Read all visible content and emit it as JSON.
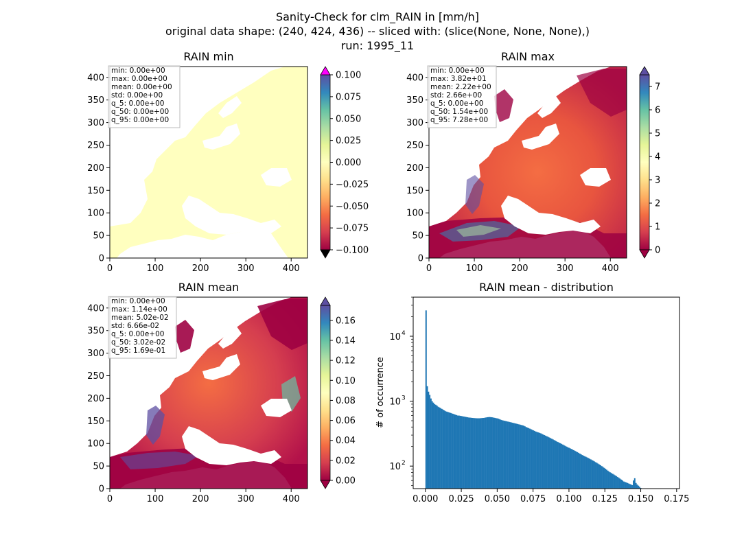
{
  "suptitle": {
    "line1": "Sanity-Check for clm_RAIN in [mm/h]",
    "line2": "original data shape: (240, 424, 436) -- sliced with: (slice(None, None, None),)",
    "line3": "run: 1995_11"
  },
  "colors": {
    "spectral_low": "#9e0142",
    "spectral_mid": "#ffffbf",
    "spectral_high": "#5e4fa2",
    "over_min": "#ff00ff",
    "under_min": "#000000",
    "hist_bar": "#1f77b4"
  },
  "chart_data": [
    {
      "type": "heatmap",
      "title": "RAIN min",
      "xticks": [
        "0",
        "100",
        "200",
        "300",
        "400"
      ],
      "yticks": [
        "0",
        "50",
        "100",
        "150",
        "200",
        "250",
        "300",
        "350",
        "400"
      ],
      "xlim": [
        0,
        436
      ],
      "ylim": [
        0,
        424
      ],
      "colormap": "Spectral",
      "colorbar": {
        "min": -0.1,
        "max": 0.1,
        "ticks": [
          "0.100",
          "0.075",
          "0.050",
          "0.025",
          "0.000",
          "−0.025",
          "−0.050",
          "−0.075",
          "−0.100"
        ],
        "extend_over": "magenta",
        "extend_under": "black"
      },
      "stats": [
        "min: 0.00e+00",
        "max: 0.00e+00",
        "mean: 0.00e+00",
        "std: 0.00e+00",
        "q_5: 0.00e+00",
        "q_50: 0.00e+00",
        "q_95: 0.00e+00"
      ]
    },
    {
      "type": "heatmap",
      "title": "RAIN max",
      "xticks": [
        "0",
        "100",
        "200",
        "300",
        "400"
      ],
      "yticks": [
        "0",
        "50",
        "100",
        "150",
        "200",
        "250",
        "300",
        "350",
        "400"
      ],
      "xlim": [
        0,
        436
      ],
      "ylim": [
        0,
        424
      ],
      "colormap": "Spectral",
      "colorbar": {
        "min": 0,
        "max": 7.5,
        "ticks": [
          "7",
          "6",
          "5",
          "4",
          "3",
          "2",
          "1",
          "0"
        ]
      },
      "stats": [
        "min: 0.00e+00",
        "max: 3.82e+01",
        "mean: 2.22e+00",
        "std: 2.66e+00",
        "q_5: 0.00e+00",
        "q_50: 1.54e+00",
        "q_95: 7.28e+00"
      ]
    },
    {
      "type": "heatmap",
      "title": "RAIN mean",
      "xticks": [
        "0",
        "100",
        "200",
        "300",
        "400"
      ],
      "yticks": [
        "0",
        "50",
        "100",
        "150",
        "200",
        "250",
        "300",
        "350",
        "400"
      ],
      "xlim": [
        0,
        436
      ],
      "ylim": [
        0,
        424
      ],
      "colormap": "Spectral",
      "colorbar": {
        "min": 0,
        "max": 0.175,
        "ticks": [
          "0.16",
          "0.14",
          "0.12",
          "0.10",
          "0.08",
          "0.06",
          "0.04",
          "0.02",
          "0.00"
        ]
      },
      "stats": [
        "min: 0.00e+00",
        "max: 1.14e+00",
        "mean: 5.02e-02",
        "std: 6.66e-02",
        "q_5: 0.00e+00",
        "q_50: 3.02e-02",
        "q_95: 1.69e-01"
      ]
    },
    {
      "type": "bar",
      "title": "RAIN mean - distribution",
      "ylabel": "# of occurrence",
      "xlabel": "",
      "yscale": "log",
      "xlim": [
        -0.0085,
        0.177
      ],
      "ylim": [
        45,
        40000
      ],
      "xticks": [
        "0.000",
        "0.025",
        "0.050",
        "0.075",
        "0.100",
        "0.125",
        "0.150",
        "0.175"
      ],
      "yticks": [
        "10",
        "10",
        "10"
      ],
      "ytick_exponents": [
        "2",
        "3",
        "4"
      ],
      "bin_start": 0.0,
      "bin_width": 0.00085,
      "values": [
        25000,
        1700,
        1400,
        1250,
        1100,
        1000,
        950,
        900,
        880,
        850,
        820,
        800,
        780,
        760,
        740,
        720,
        700,
        690,
        680,
        670,
        660,
        650,
        640,
        630,
        620,
        610,
        600,
        600,
        595,
        590,
        585,
        580,
        575,
        570,
        565,
        560,
        558,
        555,
        552,
        550,
        548,
        546,
        545,
        545,
        545,
        548,
        550,
        552,
        555,
        560,
        565,
        568,
        570,
        568,
        565,
        560,
        555,
        550,
        545,
        540,
        530,
        520,
        512,
        505,
        500,
        495,
        490,
        485,
        480,
        475,
        470,
        465,
        460,
        455,
        450,
        445,
        440,
        435,
        430,
        425,
        420,
        410,
        400,
        392,
        385,
        378,
        370,
        362,
        355,
        348,
        340,
        335,
        330,
        325,
        320,
        313,
        306,
        300,
        294,
        288,
        282,
        276,
        270,
        264,
        258,
        252,
        246,
        240,
        235,
        230,
        225,
        220,
        215,
        210,
        205,
        200,
        196,
        192,
        188,
        184,
        180,
        176,
        172,
        168,
        164,
        160,
        156,
        152,
        148,
        145,
        142,
        139,
        136,
        133,
        130,
        127,
        124,
        121,
        118,
        115,
        112,
        109,
        106,
        103,
        100,
        97,
        94,
        91,
        88,
        85,
        82,
        80,
        78,
        76,
        74,
        72,
        70,
        68,
        66,
        64,
        62,
        60,
        58,
        57,
        56,
        55,
        54,
        53,
        52,
        51,
        60,
        65,
        55,
        52,
        50,
        48,
        46,
        44,
        42,
        40,
        38,
        36,
        34,
        32,
        30,
        28,
        26,
        24,
        22,
        20,
        18,
        16,
        14,
        12,
        10,
        8,
        6,
        4,
        2,
        1
      ]
    }
  ]
}
